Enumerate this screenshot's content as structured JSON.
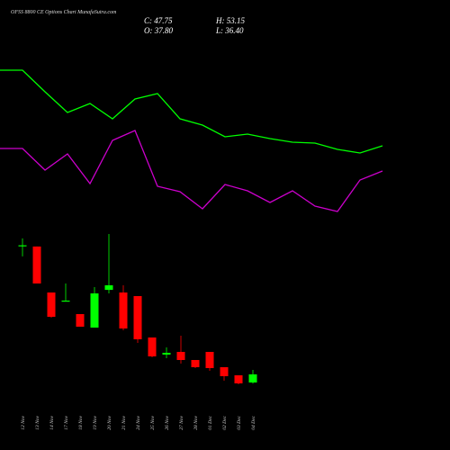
{
  "chart_data": [
    {
      "type": "line",
      "x": [
        0,
        25,
        50,
        75,
        100,
        125,
        150,
        175,
        200,
        225,
        250,
        275,
        300,
        325,
        350,
        375,
        400,
        425
      ],
      "xlim": [
        0,
        500
      ],
      "ylim": [
        40,
        300
      ],
      "series": [
        {
          "color": "#00ff00",
          "values": [
            222,
            222,
            198,
            175,
            185,
            168,
            190,
            196,
            168,
            161,
            148,
            151,
            146,
            142,
            141,
            134,
            130,
            138
          ]
        },
        {
          "color": "#cc00cc",
          "values": [
            135,
            135,
            111,
            129,
            96,
            144,
            155,
            93,
            87,
            68,
            95,
            88,
            75,
            88,
            71,
            65,
            100,
            110
          ]
        }
      ]
    },
    {
      "type": "candlestick",
      "title": "OFSS 8800 CE Options Chart MunafaSutra.com",
      "header": {
        "close": "C: 47.75",
        "open": "O: 37.80",
        "high": "H: 53.15",
        "low": "L: 36.40"
      },
      "categories": [
        "12 Nov",
        "13 Nov",
        "14 Nov",
        "17 Nov",
        "18 Nov",
        "19 Nov",
        "20 Nov",
        "21 Nov",
        "24 Nov",
        "25 Nov",
        "26 Nov",
        "27 Nov",
        "28 Nov",
        "01 Dec",
        "02 Dec",
        "03 Dec",
        "04 Dec"
      ],
      "open": [
        205,
        204,
        147.8,
        136.8,
        121.4,
        104.9,
        151,
        147.8,
        143.4,
        92.8,
        71.9,
        75.2,
        65.3,
        75.2,
        56.5,
        46.6,
        37.8
      ],
      "high": [
        214,
        204,
        147.8,
        158.8,
        121.4,
        154.4,
        219.3,
        156.6,
        143.4,
        92.8,
        80.7,
        95,
        65.3,
        75.2,
        56.5,
        46.6,
        53.15
      ],
      "low": [
        192,
        158.8,
        117,
        136.8,
        106,
        104.9,
        146.7,
        101.6,
        86.2,
        68.6,
        67.5,
        60.9,
        55.4,
        52.1,
        40,
        35.6,
        36.4
      ],
      "close": [
        205.5,
        158.8,
        118.1,
        137.9,
        106,
        146.7,
        156.6,
        103.8,
        90.6,
        69.7,
        74.1,
        65.3,
        56.5,
        55.4,
        45.5,
        36.7,
        47.75
      ],
      "up_color": "#00ff00",
      "down_color": "#ff0000",
      "ylim": [
        21.3,
        219.3
      ]
    }
  ]
}
